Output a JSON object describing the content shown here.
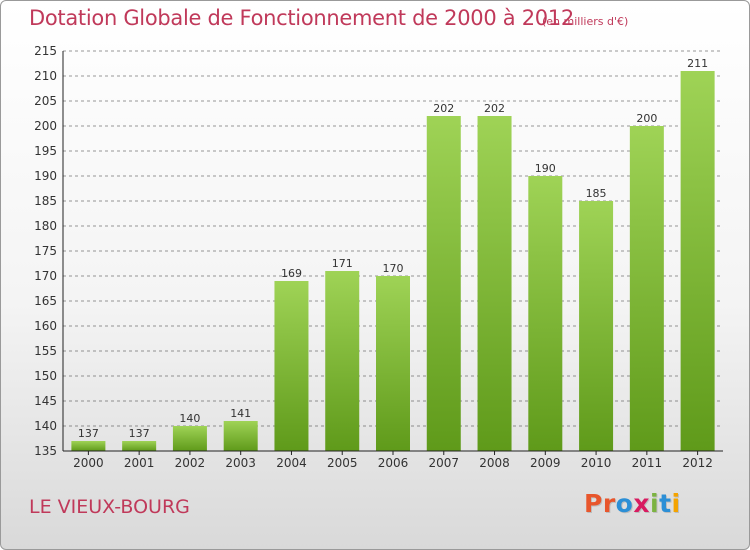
{
  "header": {
    "title": "Dotation Globale de Fonctionnement de 2000 à 2012",
    "subtitle": "(en milliers d'€)"
  },
  "footer": {
    "commune": "LE VIEUX-BOURG",
    "logo": "Proxiti",
    "logo_colors": [
      "#e8562c",
      "#e8562c",
      "#2c8fd6",
      "#d81b60",
      "#7cb342",
      "#2c8fd6",
      "#f4a300"
    ]
  },
  "colors": {
    "title": "#c0395a",
    "bar_top": "#9fd356",
    "bar_bottom": "#5f9a1a",
    "grid": "#333333",
    "text": "#333333"
  },
  "chart_data": {
    "type": "bar",
    "categories": [
      "2000",
      "2001",
      "2002",
      "2003",
      "2004",
      "2005",
      "2006",
      "2007",
      "2008",
      "2009",
      "2010",
      "2011",
      "2012"
    ],
    "values": [
      137,
      137,
      140,
      141,
      169,
      171,
      170,
      202,
      202,
      190,
      185,
      200,
      211
    ],
    "data_labels": [
      "137",
      "137",
      "140",
      "141",
      "169",
      "171",
      "170",
      "202",
      "202",
      "190",
      "185",
      "200",
      "211"
    ],
    "title": "Dotation Globale de Fonctionnement de 2000 à 2012",
    "ylim": [
      135,
      215
    ],
    "yticks": [
      135,
      140,
      145,
      150,
      155,
      160,
      165,
      170,
      175,
      180,
      185,
      190,
      195,
      200,
      205,
      210,
      215
    ],
    "grid": "horizontal-dashed",
    "legend": "none"
  }
}
